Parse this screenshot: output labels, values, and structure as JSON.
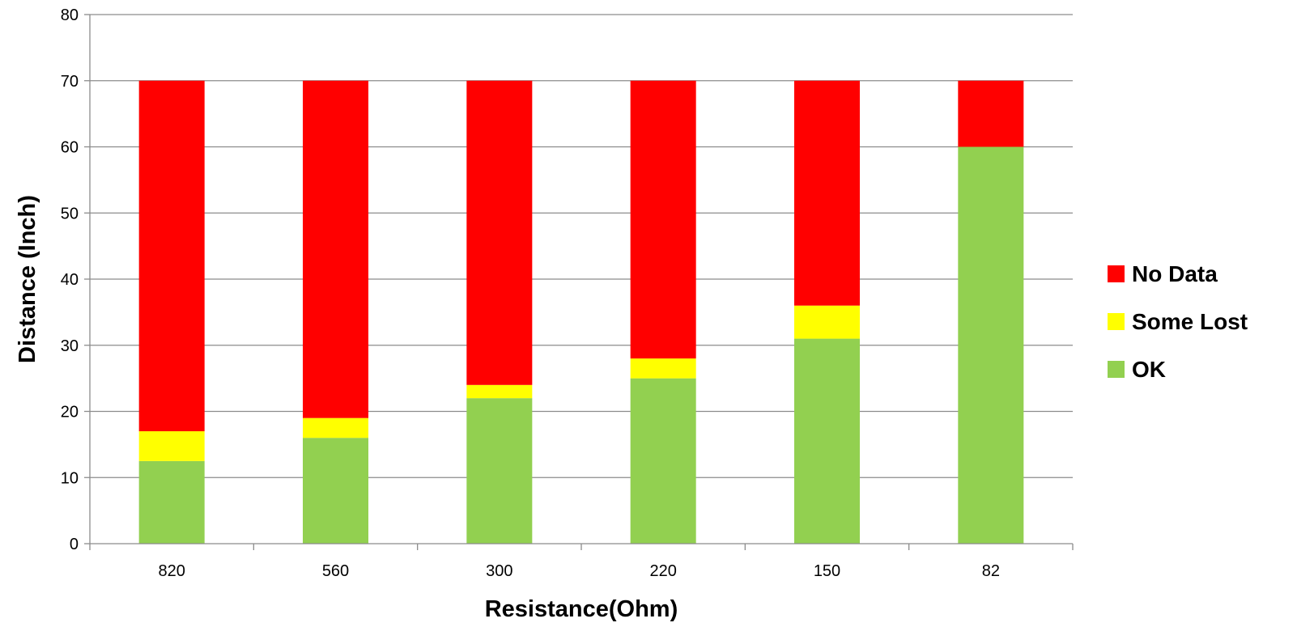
{
  "chart_data": {
    "type": "bar",
    "stacked": true,
    "title": "",
    "xlabel": "Resistance(Ohm)",
    "ylabel": "Distance (Inch)",
    "categories": [
      "820",
      "560",
      "300",
      "220",
      "150",
      "82"
    ],
    "ylim": [
      0,
      80
    ],
    "yticks": [
      0,
      10,
      20,
      30,
      40,
      50,
      60,
      70,
      80
    ],
    "grid": true,
    "legend_position": "right",
    "series": [
      {
        "name": "OK",
        "color": "#92D050",
        "values": [
          12.5,
          16,
          22,
          25,
          31,
          60
        ]
      },
      {
        "name": "Some Lost",
        "color": "#FFFF00",
        "values": [
          4.5,
          3,
          2,
          3,
          5,
          0
        ]
      },
      {
        "name": "No Data",
        "color": "#FF0000",
        "values": [
          53,
          51,
          46,
          42,
          34,
          10
        ]
      }
    ],
    "legend_order": [
      "No Data",
      "Some Lost",
      "OK"
    ]
  }
}
